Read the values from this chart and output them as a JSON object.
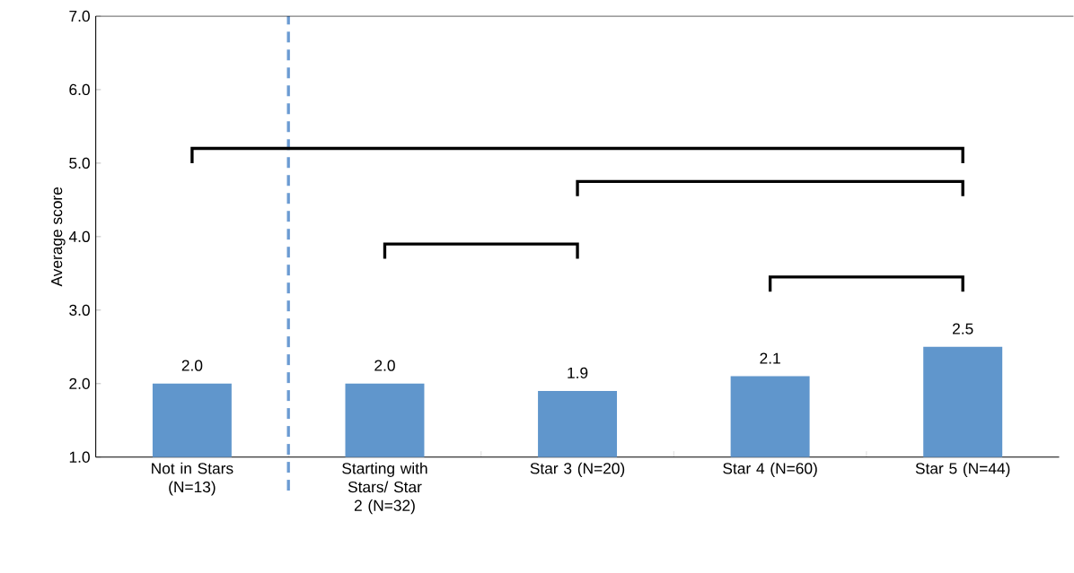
{
  "chart_data": {
    "type": "bar",
    "ylabel": "Average score",
    "categories": [
      "Not in Stars (N=13)",
      "Starting with Stars/ Star 2 (N=32)",
      "Star 3 (N=20)",
      "Star 4 (N=60)",
      "Star 5 (N=44)"
    ],
    "values": [
      2.0,
      2.0,
      1.9,
      2.1,
      2.5
    ],
    "color": "#6096cc",
    "value_labels": [
      "2.0",
      "2.0",
      "1.9",
      "2.1",
      "2.5"
    ],
    "ylim": [
      1,
      7
    ],
    "yticks": [
      {
        "value": 1,
        "label": "1.0"
      },
      {
        "value": 2,
        "label": "2.0"
      },
      {
        "value": 3,
        "label": "3.0"
      },
      {
        "value": 4,
        "label": "4.0"
      },
      {
        "value": 5,
        "label": "5.0"
      },
      {
        "value": 6,
        "label": "6.0"
      },
      {
        "value": 7,
        "label": "7.0"
      }
    ],
    "grid": false
  }
}
